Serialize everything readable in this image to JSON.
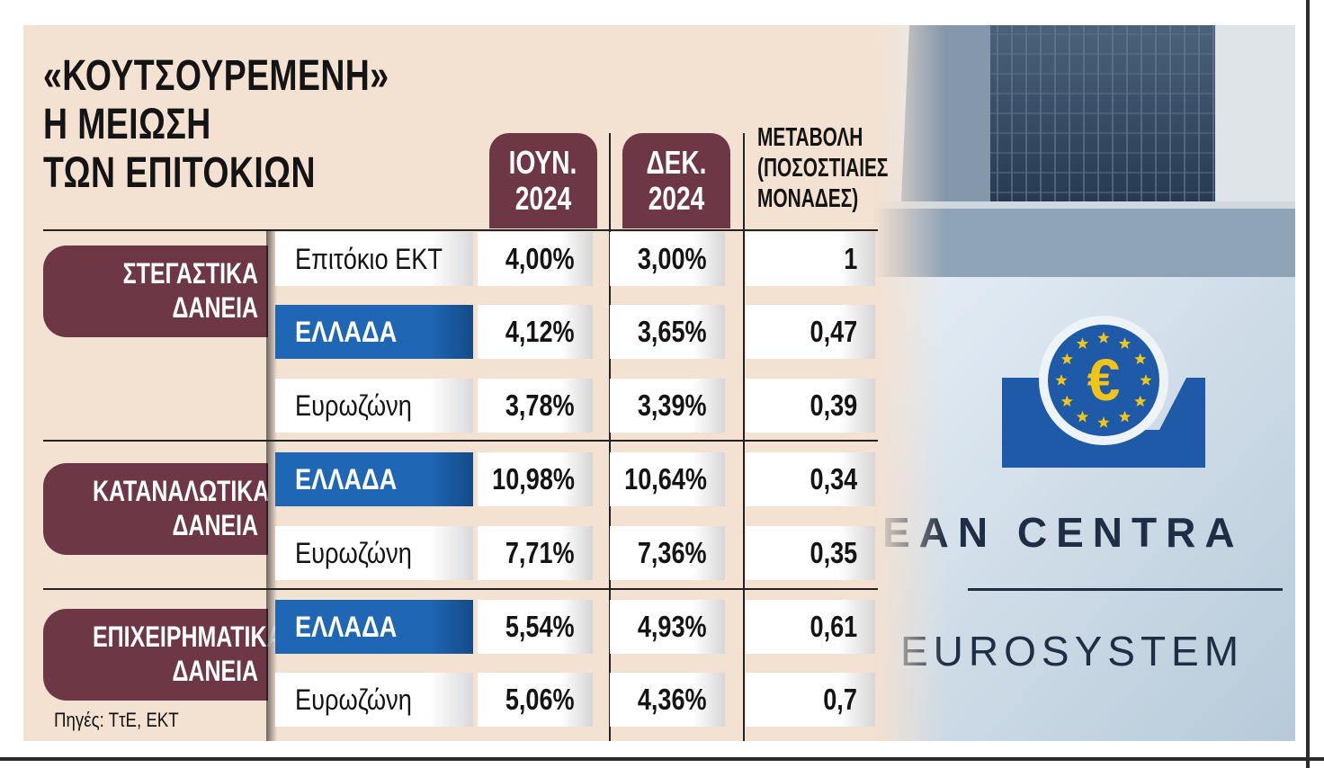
{
  "chart_data": {
    "type": "table",
    "title_lines": [
      "«ΚΟΥΤΣΟΥΡΕΜΕΝΗ»",
      "Η ΜΕΙΩΣΗ",
      "ΤΩΝ ΕΠΙΤΟΚΙΩΝ"
    ],
    "columns": [
      {
        "lines": [
          "ΙΟΥΝ.",
          "2024"
        ]
      },
      {
        "lines": [
          "ΔΕΚ.",
          "2024"
        ]
      },
      {
        "lines": [
          "ΜΕΤΑΒΟΛΗ",
          "(ΠΟΣΟΣΤΙΑΙΕΣ",
          "ΜΟΝΑΔΕΣ)"
        ]
      }
    ],
    "categories": [
      {
        "lines": [
          "ΣΤΕΓΑΣΤΙΚΑ",
          "ΔΑΝΕΙΑ"
        ]
      },
      {
        "lines": [
          "ΚΑΤΑΝΑΛΩΤΙΚΑ",
          "ΔΑΝΕΙΑ"
        ]
      },
      {
        "lines": [
          "ΕΠΙΧΕΙΡΗΜΑΤΙΚΑ",
          "ΔΑΝΕΙΑ"
        ]
      }
    ],
    "rows": [
      {
        "label": "Επιτόκιο ΕΚΤ",
        "highlight": false,
        "jun": "4,00%",
        "dec": "3,00%",
        "change": "1"
      },
      {
        "label": "ΕΛΛΑΔΑ",
        "highlight": true,
        "jun": "4,12%",
        "dec": "3,65%",
        "change": "0,47"
      },
      {
        "label": "Ευρωζώνη",
        "highlight": false,
        "jun": "3,78%",
        "dec": "3,39%",
        "change": "0,39"
      },
      {
        "label": "ΕΛΛΑΔΑ",
        "highlight": true,
        "jun": "10,98%",
        "dec": "10,64%",
        "change": "0,34"
      },
      {
        "label": "Ευρωζώνη",
        "highlight": false,
        "jun": "7,71%",
        "dec": "7,36%",
        "change": "0,35"
      },
      {
        "label": "ΕΛΛΑΔΑ",
        "highlight": true,
        "jun": "5,54%",
        "dec": "4,93%",
        "change": "0,61"
      },
      {
        "label": "Ευρωζώνη",
        "highlight": false,
        "jun": "5,06%",
        "dec": "4,36%",
        "change": "0,7"
      }
    ],
    "source": "Πηγές: ΤτΕ, ΕΚΤ"
  },
  "photo": {
    "sign_line1": "EAN CENTRA",
    "sign_line2": "EUROSYSTEM",
    "logo_symbol": "€",
    "logo_icon": "euro-stars-icon"
  },
  "colors": {
    "background": "#f3e1d1",
    "maroon": "#6e3746",
    "greece_blue": "#1f66b4",
    "sign_blue": "#1e5aa8"
  }
}
